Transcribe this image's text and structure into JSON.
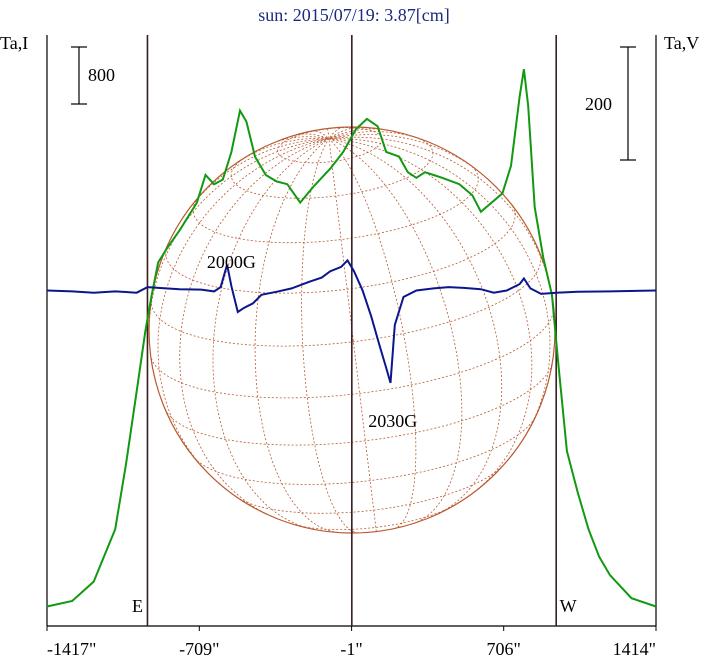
{
  "title": "sun: 2015/07/19: 3.87[cm]",
  "colors": {
    "title": "#1a2a80",
    "intensity": "#119911",
    "polarization": "#0b168c",
    "grid": "#b85a30",
    "axis": "#000000",
    "limb_line": "#3a1c1c"
  },
  "chart_data": {
    "type": "line",
    "title": "sun: 2015/07/19: 3.87[cm]",
    "y_left_label": "Ta,I",
    "y_right_label": "Ta,V",
    "scale_left": {
      "label": "800"
    },
    "scale_right": {
      "label": "200"
    },
    "x_ticks": [
      {
        "value": -1417,
        "label": "-1417\""
      },
      {
        "value": -709,
        "label": "-709\""
      },
      {
        "value": -1,
        "label": "-1\""
      },
      {
        "value": 706,
        "label": "706\""
      },
      {
        "value": 1414,
        "label": "1414\""
      }
    ],
    "xlim": [
      -1417,
      1414
    ],
    "limb_markers": [
      {
        "x": -950,
        "label": "E"
      },
      {
        "x": 950,
        "label": "W"
      }
    ],
    "center_marker": {
      "x": 0
    },
    "annotations": [
      {
        "text": "2000G",
        "x": -560
      },
      {
        "text": "2030G",
        "x": 190
      }
    ],
    "series": [
      {
        "name": "I",
        "axis": "left",
        "ylim": [
          0,
          6000
        ],
        "points": [
          [
            -1417,
            60
          ],
          [
            -1300,
            120
          ],
          [
            -1200,
            330
          ],
          [
            -1100,
            900
          ],
          [
            -1050,
            1600
          ],
          [
            -1000,
            2400
          ],
          [
            -960,
            3050
          ],
          [
            -930,
            3450
          ],
          [
            -900,
            3800
          ],
          [
            -860,
            3950
          ],
          [
            -800,
            4150
          ],
          [
            -720,
            4450
          ],
          [
            -680,
            4750
          ],
          [
            -640,
            4650
          ],
          [
            -600,
            4700
          ],
          [
            -560,
            5000
          ],
          [
            -520,
            5450
          ],
          [
            -490,
            5330
          ],
          [
            -450,
            4950
          ],
          [
            -400,
            4750
          ],
          [
            -350,
            4680
          ],
          [
            -300,
            4650
          ],
          [
            -240,
            4450
          ],
          [
            -180,
            4620
          ],
          [
            -100,
            4820
          ],
          [
            -40,
            5000
          ],
          [
            20,
            5250
          ],
          [
            70,
            5360
          ],
          [
            120,
            5280
          ],
          [
            160,
            5000
          ],
          [
            220,
            4950
          ],
          [
            260,
            4780
          ],
          [
            300,
            4720
          ],
          [
            340,
            4780
          ],
          [
            380,
            4750
          ],
          [
            420,
            4720
          ],
          [
            500,
            4650
          ],
          [
            560,
            4530
          ],
          [
            600,
            4350
          ],
          [
            650,
            4450
          ],
          [
            700,
            4550
          ],
          [
            740,
            4850
          ],
          [
            780,
            5600
          ],
          [
            800,
            5900
          ],
          [
            820,
            5500
          ],
          [
            850,
            4400
          ],
          [
            890,
            3850
          ],
          [
            930,
            3450
          ],
          [
            960,
            2700
          ],
          [
            1000,
            1750
          ],
          [
            1050,
            1300
          ],
          [
            1100,
            900
          ],
          [
            1150,
            600
          ],
          [
            1200,
            400
          ],
          [
            1300,
            150
          ],
          [
            1414,
            60
          ]
        ]
      },
      {
        "name": "V",
        "axis": "right",
        "ylim": [
          -620,
          520
        ],
        "points": [
          [
            -1417,
            0
          ],
          [
            -1300,
            -2
          ],
          [
            -1200,
            -5
          ],
          [
            -1100,
            -2
          ],
          [
            -1000,
            -5
          ],
          [
            -950,
            8
          ],
          [
            -900,
            6
          ],
          [
            -800,
            3
          ],
          [
            -700,
            2
          ],
          [
            -640,
            -2
          ],
          [
            -610,
            8
          ],
          [
            -580,
            60
          ],
          [
            -560,
            10
          ],
          [
            -530,
            -50
          ],
          [
            -500,
            -40
          ],
          [
            -460,
            -30
          ],
          [
            -420,
            -10
          ],
          [
            -350,
            -3
          ],
          [
            -280,
            5
          ],
          [
            -200,
            20
          ],
          [
            -140,
            30
          ],
          [
            -100,
            45
          ],
          [
            -50,
            55
          ],
          [
            -20,
            70
          ],
          [
            10,
            45
          ],
          [
            50,
            0
          ],
          [
            90,
            -60
          ],
          [
            130,
            -130
          ],
          [
            160,
            -180
          ],
          [
            180,
            -215
          ],
          [
            200,
            -80
          ],
          [
            240,
            -15
          ],
          [
            300,
            0
          ],
          [
            380,
            5
          ],
          [
            450,
            8
          ],
          [
            520,
            6
          ],
          [
            600,
            3
          ],
          [
            660,
            -5
          ],
          [
            720,
            0
          ],
          [
            780,
            15
          ],
          [
            800,
            28
          ],
          [
            830,
            5
          ],
          [
            880,
            -8
          ],
          [
            950,
            -5
          ],
          [
            1050,
            -3
          ],
          [
            1200,
            -2
          ],
          [
            1414,
            0
          ]
        ]
      }
    ]
  }
}
